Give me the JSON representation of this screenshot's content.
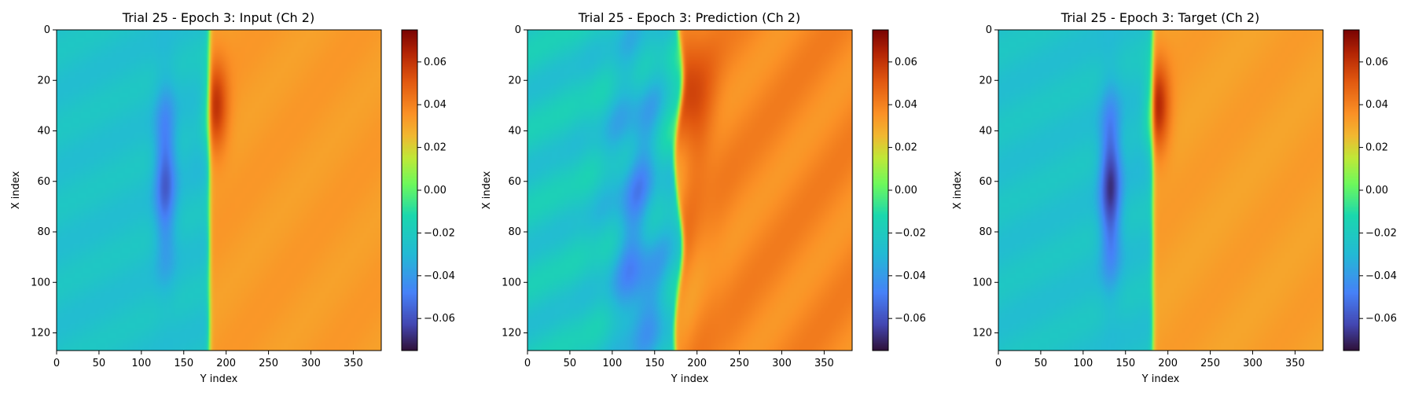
{
  "chart_data": [
    {
      "type": "heatmap",
      "title": "Trial 25 - Epoch 3: Input (Ch 2)",
      "xlabel": "Y index",
      "ylabel": "X index",
      "xlim": [
        0,
        383
      ],
      "ylim": [
        127,
        0
      ],
      "xticks": [
        "0",
        "50",
        "100",
        "150",
        "200",
        "250",
        "300",
        "350"
      ],
      "yticks": [
        "0",
        "20",
        "40",
        "60",
        "80",
        "100",
        "120"
      ],
      "colorbar": {
        "min": -0.075,
        "max": 0.075,
        "ticks": [
          "0.06",
          "0.04",
          "0.02",
          "0.00",
          "−0.02",
          "−0.04",
          "−0.06"
        ]
      },
      "features": {
        "front_y": 180,
        "left_value": -0.025,
        "right_value": 0.033,
        "blob": {
          "center_y": 128,
          "center_x": 58,
          "min_value": -0.056
        },
        "hot_spot": {
          "center_y": 188,
          "center_x": 30,
          "max_value": 0.06
        }
      }
    },
    {
      "type": "heatmap",
      "title": "Trial 25 - Epoch 3: Prediction (Ch 2)",
      "xlabel": "Y index",
      "ylabel": "X index",
      "xlim": [
        0,
        383
      ],
      "ylim": [
        127,
        0
      ],
      "xticks": [
        "0",
        "50",
        "100",
        "150",
        "200",
        "250",
        "300",
        "350"
      ],
      "yticks": [
        "0",
        "20",
        "40",
        "60",
        "80",
        "100",
        "120"
      ],
      "colorbar": {
        "min": -0.075,
        "max": 0.075,
        "ticks": [
          "0.06",
          "0.04",
          "0.02",
          "0.00",
          "−0.02",
          "−0.04",
          "−0.06"
        ]
      },
      "features": {
        "front_y": 178,
        "left_value": -0.022,
        "right_value": 0.038,
        "blob": {
          "center_y": 128,
          "center_x": 70,
          "min_value": -0.04
        },
        "hot_spot": {
          "center_y": 195,
          "center_x": 28,
          "max_value": 0.055
        }
      }
    },
    {
      "type": "heatmap",
      "title": "Trial 25 - Epoch 3: Target (Ch 2)",
      "xlabel": "Y index",
      "ylabel": "X index",
      "xlim": [
        0,
        383
      ],
      "ylim": [
        127,
        0
      ],
      "xticks": [
        "0",
        "50",
        "100",
        "150",
        "200",
        "250",
        "300",
        "350"
      ],
      "yticks": [
        "0",
        "20",
        "40",
        "60",
        "80",
        "100",
        "120"
      ],
      "colorbar": {
        "min": -0.075,
        "max": 0.075,
        "ticks": [
          "0.06",
          "0.04",
          "0.02",
          "0.00",
          "−0.02",
          "−0.04",
          "−0.06"
        ]
      },
      "features": {
        "front_y": 182,
        "left_value": -0.025,
        "right_value": 0.032,
        "blob": {
          "center_y": 132,
          "center_x": 62,
          "min_value": -0.066
        },
        "hot_spot": {
          "center_y": 188,
          "center_x": 30,
          "max_value": 0.063
        }
      }
    }
  ]
}
